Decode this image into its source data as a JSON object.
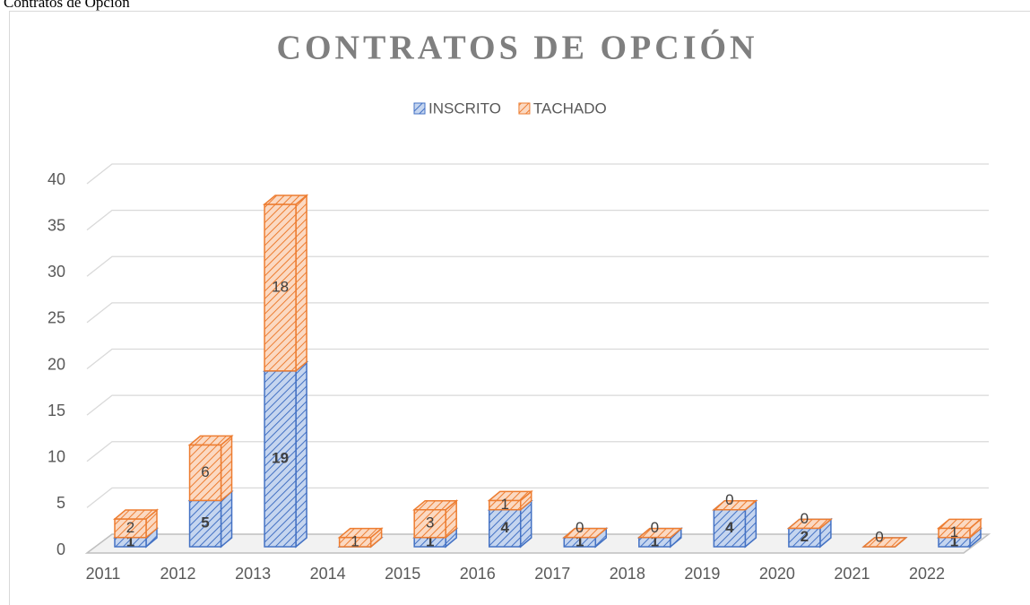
{
  "caption": "Contratos de Opción",
  "chart_data": {
    "type": "bar3d_stacked",
    "title": "CONTRATOS DE OPCIÓN",
    "categories": [
      "2011",
      "2012",
      "2013",
      "2014",
      "2015",
      "2016",
      "2017",
      "2018",
      "2019",
      "2020",
      "2021",
      "2022"
    ],
    "series": [
      {
        "name": "INSCRITO",
        "color": "#4472c4",
        "values": [
          1,
          5,
          19,
          0,
          1,
          4,
          1,
          1,
          4,
          2,
          0,
          1
        ]
      },
      {
        "name": "TACHADO",
        "color": "#ed7d31",
        "values": [
          2,
          6,
          18,
          1,
          3,
          1,
          0,
          0,
          0,
          0,
          0,
          1
        ]
      }
    ],
    "ylim": [
      0,
      40
    ],
    "yticks": [
      0,
      5,
      10,
      15,
      20,
      25,
      30,
      35,
      40
    ],
    "grid": true,
    "legend": "top"
  }
}
